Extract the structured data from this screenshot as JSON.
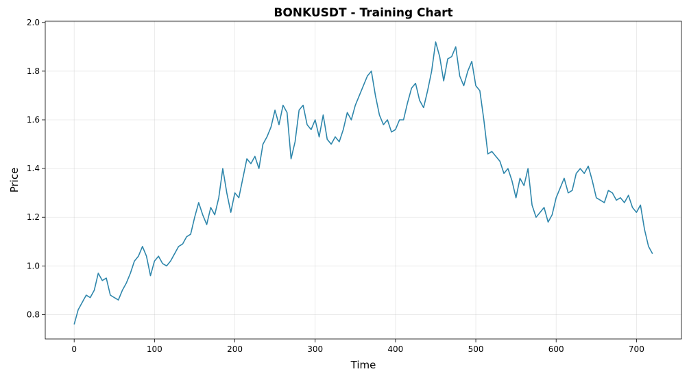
{
  "chart_data": {
    "type": "line",
    "title": "BONKUSDT - Training Chart",
    "xlabel": "Time",
    "ylabel": "Price",
    "xlim": [
      -36,
      756
    ],
    "ylim": [
      0.7,
      2.005
    ],
    "xticks": [
      0,
      100,
      200,
      300,
      400,
      500,
      600,
      700
    ],
    "yticks": [
      0.8,
      1.0,
      1.2,
      1.4,
      1.6,
      1.8,
      2.0
    ],
    "grid": true,
    "line_color": "#2e86ab",
    "series": [
      {
        "x": [
          0,
          5,
          10,
          15,
          20,
          25,
          30,
          35,
          40,
          45,
          50,
          55,
          60,
          65,
          70,
          75,
          80,
          85,
          90,
          95,
          100,
          105,
          110,
          115,
          120,
          125,
          130,
          135,
          140,
          145,
          150,
          155,
          160,
          165,
          170,
          175,
          180,
          185,
          190,
          195,
          200,
          205,
          210,
          215,
          220,
          225,
          230,
          235,
          240,
          245,
          250,
          255,
          260,
          265,
          270,
          275,
          280,
          285,
          290,
          295,
          300,
          305,
          310,
          315,
          320,
          325,
          330,
          335,
          340,
          345,
          350,
          355,
          360,
          365,
          370,
          375,
          380,
          385,
          390,
          395,
          400,
          405,
          410,
          415,
          420,
          425,
          430,
          435,
          440,
          445,
          450,
          455,
          460,
          465,
          470,
          475,
          480,
          485,
          490,
          495,
          500,
          505,
          510,
          515,
          520,
          525,
          530,
          535,
          540,
          545,
          550,
          555,
          560,
          565,
          570,
          575,
          580,
          585,
          590,
          595,
          600,
          605,
          610,
          615,
          620,
          625,
          630,
          635,
          640,
          645,
          650,
          655,
          660,
          665,
          670,
          675,
          680,
          685,
          690,
          695,
          700,
          705,
          710,
          715,
          720
        ],
        "values": [
          0.76,
          0.82,
          0.85,
          0.88,
          0.87,
          0.9,
          0.97,
          0.94,
          0.95,
          0.88,
          0.87,
          0.86,
          0.9,
          0.93,
          0.97,
          1.02,
          1.04,
          1.08,
          1.04,
          0.96,
          1.02,
          1.04,
          1.01,
          1.0,
          1.02,
          1.05,
          1.08,
          1.09,
          1.12,
          1.13,
          1.2,
          1.26,
          1.21,
          1.17,
          1.24,
          1.21,
          1.28,
          1.4,
          1.3,
          1.22,
          1.3,
          1.28,
          1.36,
          1.44,
          1.42,
          1.45,
          1.4,
          1.5,
          1.53,
          1.57,
          1.64,
          1.58,
          1.66,
          1.63,
          1.44,
          1.51,
          1.64,
          1.66,
          1.58,
          1.56,
          1.6,
          1.53,
          1.62,
          1.52,
          1.5,
          1.53,
          1.51,
          1.56,
          1.63,
          1.6,
          1.66,
          1.7,
          1.74,
          1.78,
          1.8,
          1.7,
          1.62,
          1.58,
          1.6,
          1.55,
          1.56,
          1.6,
          1.6,
          1.67,
          1.73,
          1.75,
          1.68,
          1.65,
          1.72,
          1.8,
          1.92,
          1.86,
          1.76,
          1.85,
          1.86,
          1.9,
          1.78,
          1.74,
          1.8,
          1.84,
          1.74,
          1.72,
          1.6,
          1.46,
          1.47,
          1.45,
          1.43,
          1.38,
          1.4,
          1.35,
          1.28,
          1.36,
          1.33,
          1.4,
          1.25,
          1.2,
          1.22,
          1.24,
          1.18,
          1.21,
          1.28,
          1.32,
          1.36,
          1.3,
          1.31,
          1.38,
          1.4,
          1.38,
          1.41,
          1.35,
          1.28,
          1.27,
          1.26,
          1.31,
          1.3,
          1.27,
          1.28,
          1.26,
          1.29,
          1.24,
          1.22,
          1.25,
          1.15,
          1.08,
          1.05
        ]
      }
    ]
  }
}
